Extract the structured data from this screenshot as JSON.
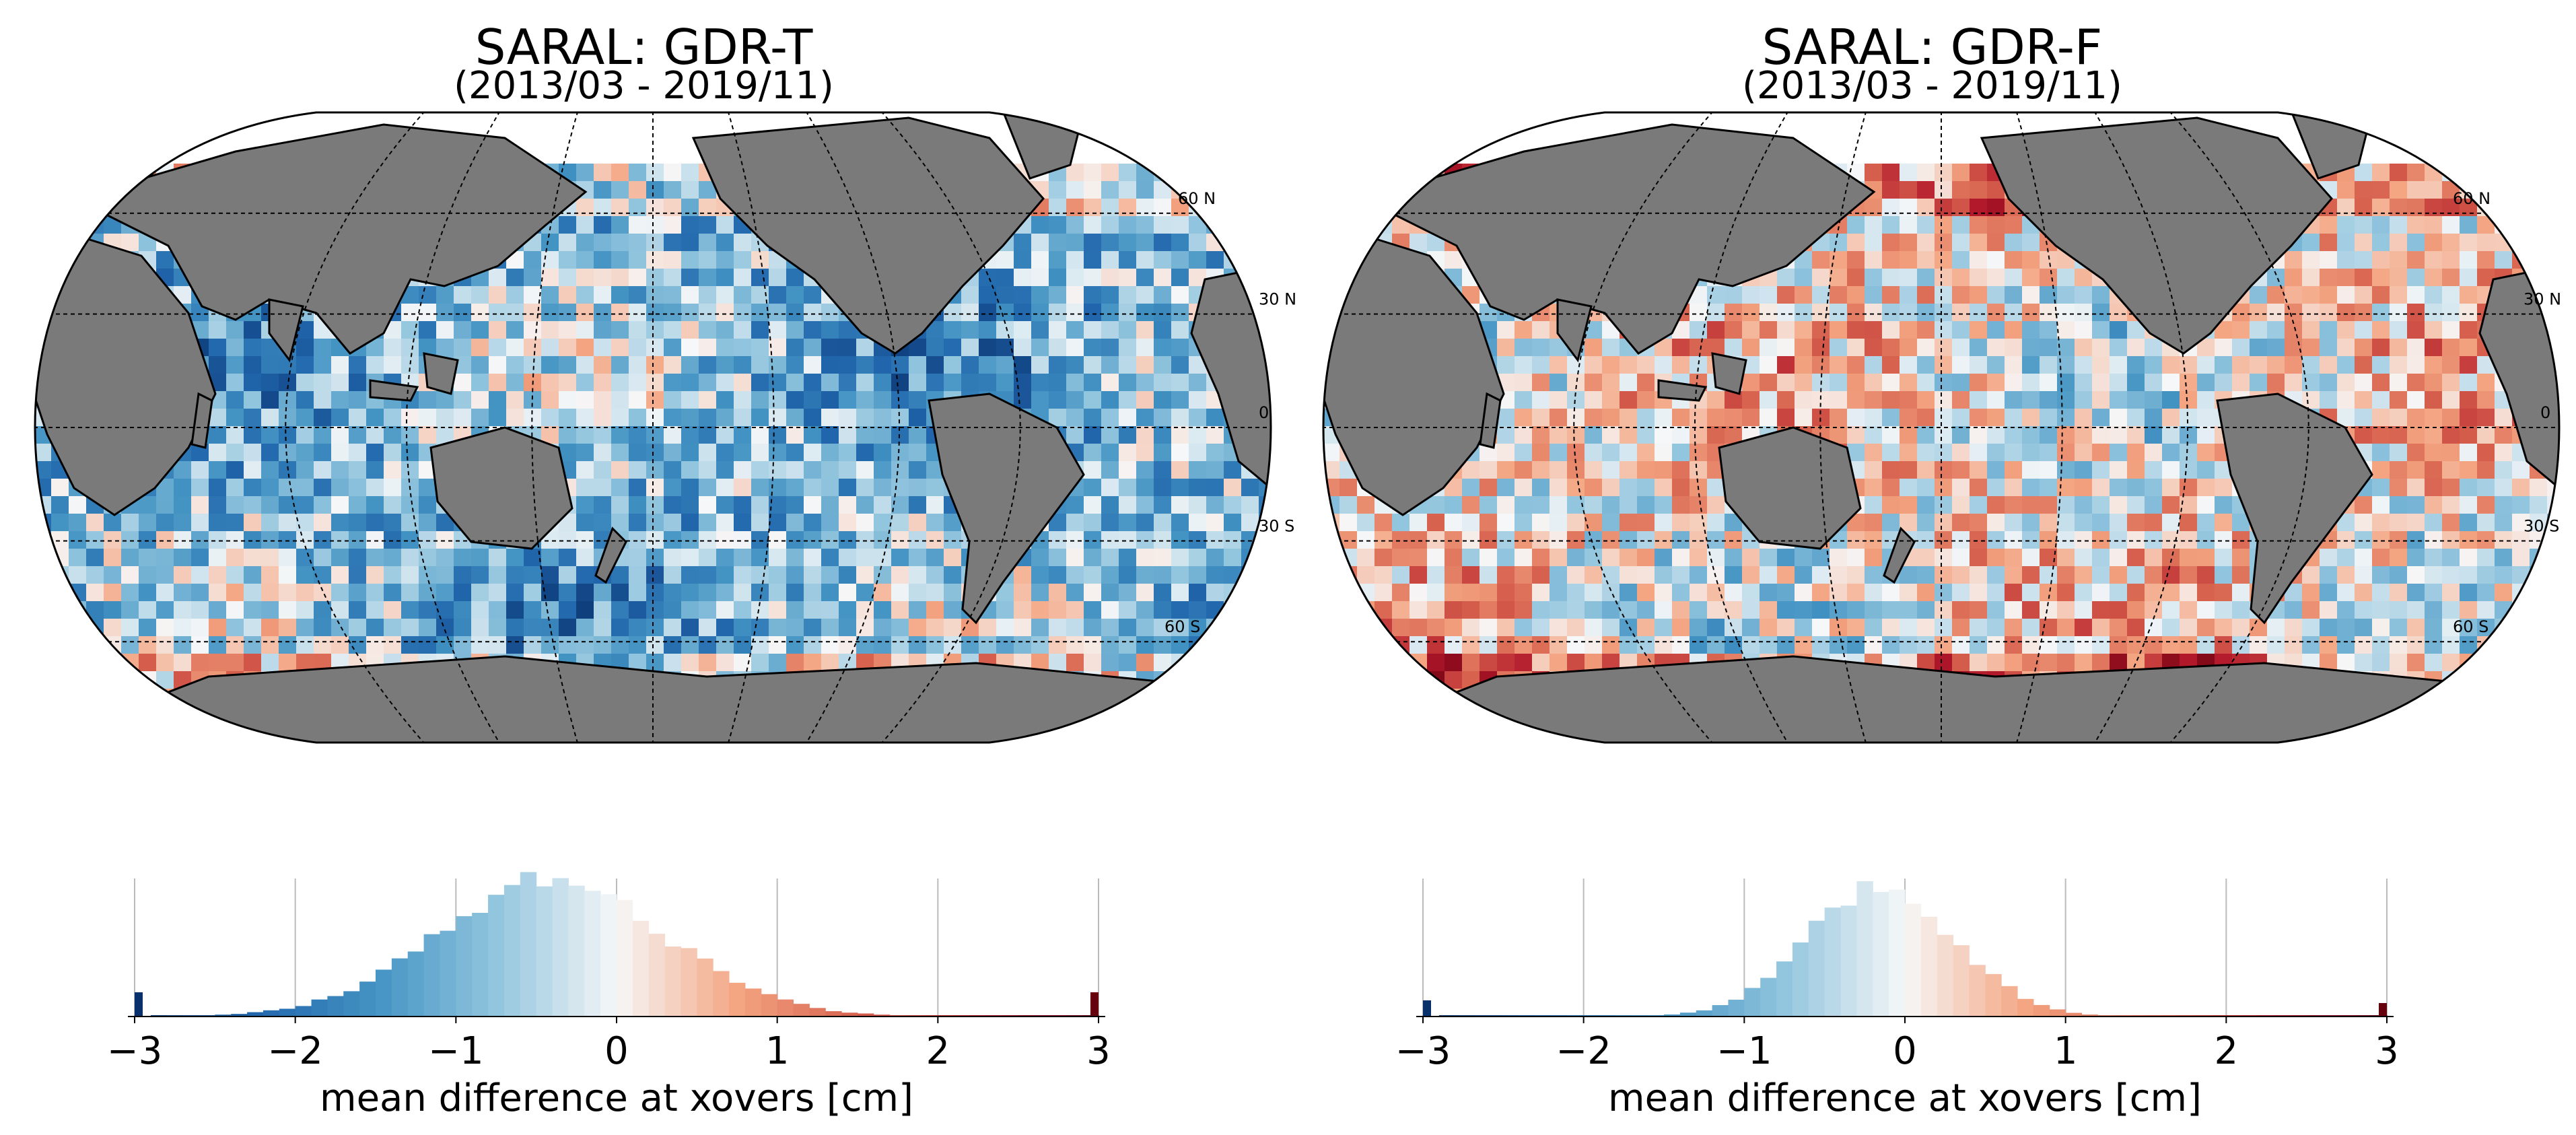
{
  "colors": {
    "land": "#7a7a7a",
    "ocean_blank": "#ffffff",
    "neg_strong": "#08306b",
    "neg_mid": "#3a7fc0",
    "neutral": "#f4f6f8",
    "pos_mid": "#f08a68",
    "pos_strong": "#67000d",
    "grid": "#000000"
  },
  "panels": [
    {
      "id": "gdr-t",
      "title": "SARAL: GDR-T",
      "subtitle": "(2013/03 - 2019/11)",
      "lat_labels": [
        "60 N",
        "30 N",
        "0",
        "30 S",
        "60 S"
      ],
      "lat_labels_clipped": true,
      "hist_xlabel": "mean difference at xovers [cm]",
      "hist_ticks": [
        "−3",
        "−2",
        "−1",
        "0",
        "1",
        "2",
        "3"
      ],
      "chart_data": {
        "type": "bar",
        "x_range": [
          -3,
          3
        ],
        "bin_width": 0.1,
        "xlabel": "mean difference at xovers [cm]",
        "peak_center": -0.4,
        "peak_relative_height": 1.0,
        "distribution_sigma": 0.7,
        "tail_clip_bins": {
          "-3": 0.18,
          "3": 0.18
        }
      },
      "map_bias": -0.35
    },
    {
      "id": "gdr-f",
      "title": "SARAL: GDR-F",
      "subtitle": "(2013/03 - 2019/11)",
      "lat_labels": [
        "60 N",
        "30 N",
        "0",
        "30 S",
        "60 S"
      ],
      "lat_labels_clipped": false,
      "hist_xlabel": "mean difference at xovers [cm]",
      "hist_ticks": [
        "−3",
        "−2",
        "−1",
        "0",
        "1",
        "2",
        "3"
      ],
      "chart_data": {
        "type": "bar",
        "x_range": [
          -3,
          3
        ],
        "bin_width": 0.1,
        "xlabel": "mean difference at xovers [cm]",
        "peak_center": -0.15,
        "peak_relative_height": 1.0,
        "distribution_sigma": 0.45,
        "tail_clip_bins": {
          "-3": 0.12,
          "3": 0.1
        }
      },
      "map_bias": 0.05
    }
  ]
}
